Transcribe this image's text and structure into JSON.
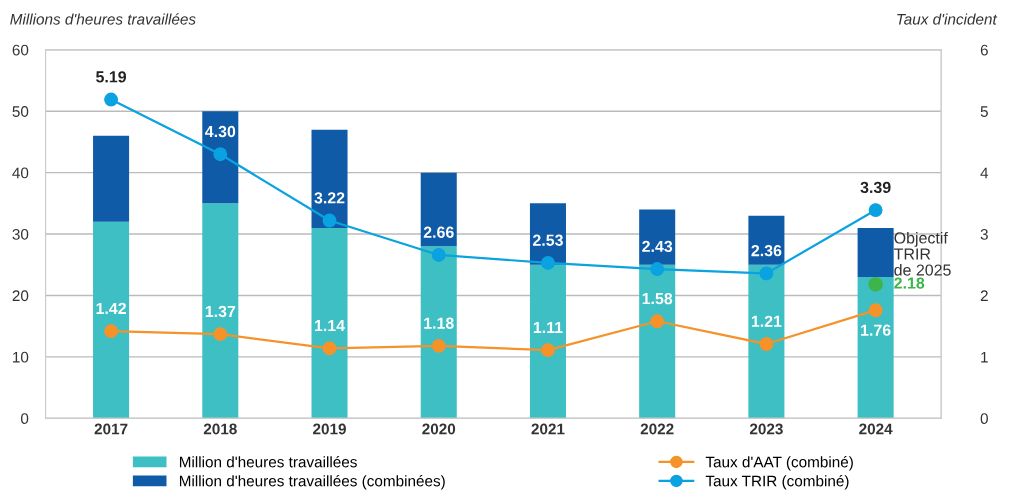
{
  "chart_data": {
    "type": "bar",
    "stacked": true,
    "ylabel": "Millions d'heures travaillées",
    "y2label": "Taux d'incident",
    "categories": [
      "2017",
      "2018",
      "2019",
      "2020",
      "2021",
      "2022",
      "2023",
      "2024"
    ],
    "series": [
      {
        "name": "Million d'heures travaillées",
        "color": "#3dbfc3",
        "values": [
          32,
          35,
          31,
          28,
          25,
          25,
          25,
          23
        ]
      },
      {
        "name": "Million d'heures travaillées (combinées)",
        "color": "#0f5ba8",
        "values": [
          14,
          15,
          16,
          12,
          10,
          9,
          8,
          8
        ]
      },
      {
        "type": "line",
        "axis": "y2",
        "name": "Taux d'AAT (combiné)",
        "color": "#f5922a",
        "marker": "circle",
        "values": [
          1.42,
          1.37,
          1.14,
          1.18,
          1.11,
          1.58,
          1.21,
          1.76
        ],
        "value_labels": [
          "1.42",
          "1.37",
          "1.14",
          "1.18",
          "1.11",
          "1.58",
          "1.21",
          "1.76"
        ]
      },
      {
        "type": "line",
        "axis": "y2",
        "name": "Taux TRIR (combiné)",
        "color": "#0aa2e0",
        "marker": "circle",
        "values": [
          5.19,
          4.3,
          3.22,
          2.66,
          2.53,
          2.43,
          2.36,
          3.39
        ],
        "value_labels": [
          "5.19",
          "4.30",
          "3.22",
          "2.66",
          "2.53",
          "2.43",
          "2.36",
          "3.39"
        ]
      },
      {
        "type": "scatter",
        "axis": "y2",
        "color": "#3db54a",
        "marker": "circle",
        "values": [
          null,
          null,
          null,
          null,
          null,
          null,
          null,
          2.18
        ],
        "value_labels": [
          null,
          null,
          null,
          null,
          null,
          null,
          null,
          "2.18"
        ]
      }
    ],
    "ylim": [
      0,
      60
    ],
    "yticks": [
      0,
      10,
      20,
      30,
      40,
      50,
      60
    ],
    "y2lim": [
      0,
      6
    ],
    "y2ticks": [
      0,
      1,
      2,
      3,
      4,
      5,
      6
    ],
    "annotations": [
      "Objectif TRIR de 2025"
    ],
    "grid": "y",
    "legend": "bottom"
  }
}
